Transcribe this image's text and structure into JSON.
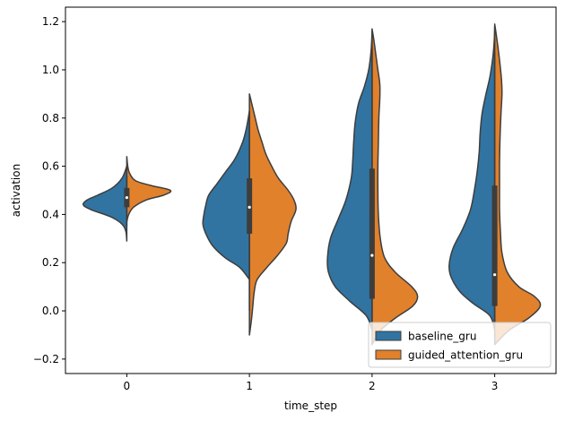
{
  "chart_data": {
    "type": "violin",
    "split": true,
    "xlabel": "time_step",
    "ylabel": "activation",
    "categories": [
      "0",
      "1",
      "2",
      "3"
    ],
    "ylim": [
      -0.26,
      1.26
    ],
    "yticks": [
      -0.2,
      0.0,
      0.2,
      0.4,
      0.6,
      0.8,
      1.0,
      1.2
    ],
    "ytick_labels": [
      "−0.2",
      "0.0",
      "0.2",
      "0.4",
      "0.6",
      "0.8",
      "1.0",
      "1.2"
    ],
    "grid": false,
    "legend": {
      "position": "bottom-right",
      "entries": [
        "baseline_gru",
        "guided_attention_gru"
      ]
    },
    "colors": {
      "baseline_gru": "#3174a1",
      "guided_attention_gru": "#e1812c",
      "edge": "#3d3d3d",
      "box": "#3d3d3d",
      "median": "#ffffff"
    },
    "series": [
      {
        "name": "baseline_gru",
        "side": "left",
        "violins": [
          {
            "category": "0",
            "ymin": 0.29,
            "ymax": 0.6,
            "profile": [
              [
                0.29,
                0.0
              ],
              [
                0.33,
                0.02
              ],
              [
                0.36,
                0.1
              ],
              [
                0.39,
                0.33
              ],
              [
                0.42,
                0.74
              ],
              [
                0.44,
                0.9
              ],
              [
                0.46,
                0.82
              ],
              [
                0.48,
                0.6
              ],
              [
                0.51,
                0.3
              ],
              [
                0.55,
                0.1
              ],
              [
                0.6,
                0.0
              ]
            ]
          },
          {
            "category": "1",
            "ymin": 0.13,
            "ymax": 0.83,
            "profile": [
              [
                0.13,
                0.0
              ],
              [
                0.18,
                0.2
              ],
              [
                0.22,
                0.5
              ],
              [
                0.27,
                0.76
              ],
              [
                0.32,
                0.9
              ],
              [
                0.36,
                0.96
              ],
              [
                0.4,
                0.94
              ],
              [
                0.44,
                0.9
              ],
              [
                0.48,
                0.84
              ],
              [
                0.53,
                0.66
              ],
              [
                0.58,
                0.48
              ],
              [
                0.63,
                0.3
              ],
              [
                0.7,
                0.14
              ],
              [
                0.76,
                0.06
              ],
              [
                0.83,
                0.0
              ]
            ]
          },
          {
            "category": "2",
            "ymin": -0.08,
            "ymax": 1.16,
            "profile": [
              [
                -0.08,
                0.0
              ],
              [
                -0.02,
                0.12
              ],
              [
                0.04,
                0.46
              ],
              [
                0.1,
                0.76
              ],
              [
                0.16,
                0.9
              ],
              [
                0.22,
                0.92
              ],
              [
                0.3,
                0.86
              ],
              [
                0.38,
                0.7
              ],
              [
                0.46,
                0.54
              ],
              [
                0.55,
                0.43
              ],
              [
                0.62,
                0.4
              ],
              [
                0.7,
                0.38
              ],
              [
                0.78,
                0.35
              ],
              [
                0.86,
                0.28
              ],
              [
                0.93,
                0.16
              ],
              [
                1.0,
                0.07
              ],
              [
                1.08,
                0.02
              ],
              [
                1.16,
                0.0
              ]
            ]
          },
          {
            "category": "3",
            "ymin": -0.08,
            "ymax": 1.18,
            "profile": [
              [
                -0.08,
                0.0
              ],
              [
                -0.02,
                0.1
              ],
              [
                0.03,
                0.44
              ],
              [
                0.08,
                0.72
              ],
              [
                0.14,
                0.9
              ],
              [
                0.19,
                0.94
              ],
              [
                0.26,
                0.86
              ],
              [
                0.34,
                0.66
              ],
              [
                0.42,
                0.5
              ],
              [
                0.5,
                0.42
              ],
              [
                0.58,
                0.36
              ],
              [
                0.66,
                0.32
              ],
              [
                0.74,
                0.3
              ],
              [
                0.82,
                0.26
              ],
              [
                0.9,
                0.18
              ],
              [
                0.97,
                0.1
              ],
              [
                1.05,
                0.04
              ],
              [
                1.12,
                0.01
              ],
              [
                1.18,
                0.0
              ]
            ]
          }
        ]
      },
      {
        "name": "guided_attention_gru",
        "side": "right",
        "violins": [
          {
            "category": "0",
            "ymin": 0.37,
            "ymax": 0.64,
            "profile": [
              [
                0.37,
                0.0
              ],
              [
                0.4,
                0.04
              ],
              [
                0.43,
                0.14
              ],
              [
                0.46,
                0.4
              ],
              [
                0.48,
                0.76
              ],
              [
                0.5,
                0.9
              ],
              [
                0.52,
                0.5
              ],
              [
                0.54,
                0.18
              ],
              [
                0.57,
                0.06
              ],
              [
                0.6,
                0.02
              ],
              [
                0.64,
                0.0
              ]
            ]
          },
          {
            "category": "1",
            "ymin": -0.1,
            "ymax": 0.9,
            "profile": [
              [
                -0.1,
                0.0
              ],
              [
                -0.04,
                0.04
              ],
              [
                0.02,
                0.07
              ],
              [
                0.08,
                0.1
              ],
              [
                0.13,
                0.16
              ],
              [
                0.18,
                0.36
              ],
              [
                0.23,
                0.58
              ],
              [
                0.28,
                0.76
              ],
              [
                0.32,
                0.8
              ],
              [
                0.37,
                0.86
              ],
              [
                0.42,
                0.96
              ],
              [
                0.46,
                0.92
              ],
              [
                0.5,
                0.8
              ],
              [
                0.55,
                0.6
              ],
              [
                0.6,
                0.46
              ],
              [
                0.65,
                0.34
              ],
              [
                0.7,
                0.26
              ],
              [
                0.75,
                0.18
              ],
              [
                0.8,
                0.12
              ],
              [
                0.85,
                0.06
              ],
              [
                0.9,
                0.0
              ]
            ]
          },
          {
            "category": "2",
            "ymin": -0.14,
            "ymax": 1.17,
            "profile": [
              [
                -0.14,
                0.0
              ],
              [
                -0.08,
                0.18
              ],
              [
                -0.03,
                0.48
              ],
              [
                0.02,
                0.84
              ],
              [
                0.06,
                0.94
              ],
              [
                0.1,
                0.82
              ],
              [
                0.16,
                0.48
              ],
              [
                0.22,
                0.26
              ],
              [
                0.3,
                0.17
              ],
              [
                0.4,
                0.13
              ],
              [
                0.5,
                0.12
              ],
              [
                0.6,
                0.12
              ],
              [
                0.7,
                0.13
              ],
              [
                0.8,
                0.14
              ],
              [
                0.88,
                0.16
              ],
              [
                0.94,
                0.16
              ],
              [
                1.0,
                0.12
              ],
              [
                1.06,
                0.08
              ],
              [
                1.12,
                0.04
              ],
              [
                1.17,
                0.0
              ]
            ]
          },
          {
            "category": "3",
            "ymin": -0.14,
            "ymax": 1.19,
            "profile": [
              [
                -0.14,
                0.0
              ],
              [
                -0.08,
                0.3
              ],
              [
                -0.03,
                0.7
              ],
              [
                0.02,
                0.94
              ],
              [
                0.06,
                0.82
              ],
              [
                0.1,
                0.5
              ],
              [
                0.16,
                0.26
              ],
              [
                0.24,
                0.15
              ],
              [
                0.32,
                0.12
              ],
              [
                0.42,
                0.1
              ],
              [
                0.52,
                0.1
              ],
              [
                0.62,
                0.1
              ],
              [
                0.72,
                0.11
              ],
              [
                0.82,
                0.13
              ],
              [
                0.9,
                0.15
              ],
              [
                0.96,
                0.14
              ],
              [
                1.04,
                0.1
              ],
              [
                1.12,
                0.05
              ],
              [
                1.19,
                0.0
              ]
            ]
          }
        ]
      }
    ],
    "boxes": [
      {
        "category": "0",
        "q1": 0.43,
        "median": 0.47,
        "q3": 0.51,
        "whisker_low": 0.35,
        "whisker_high": 0.56
      },
      {
        "category": "1",
        "q1": 0.32,
        "median": 0.43,
        "q3": 0.55,
        "whisker_low": 0.0,
        "whisker_high": 0.83
      },
      {
        "category": "2",
        "q1": 0.05,
        "median": 0.23,
        "q3": 0.59,
        "whisker_low": -0.05,
        "whisker_high": 1.09
      },
      {
        "category": "3",
        "q1": 0.02,
        "median": 0.15,
        "q3": 0.52,
        "whisker_low": -0.08,
        "whisker_high": 1.07
      }
    ]
  }
}
